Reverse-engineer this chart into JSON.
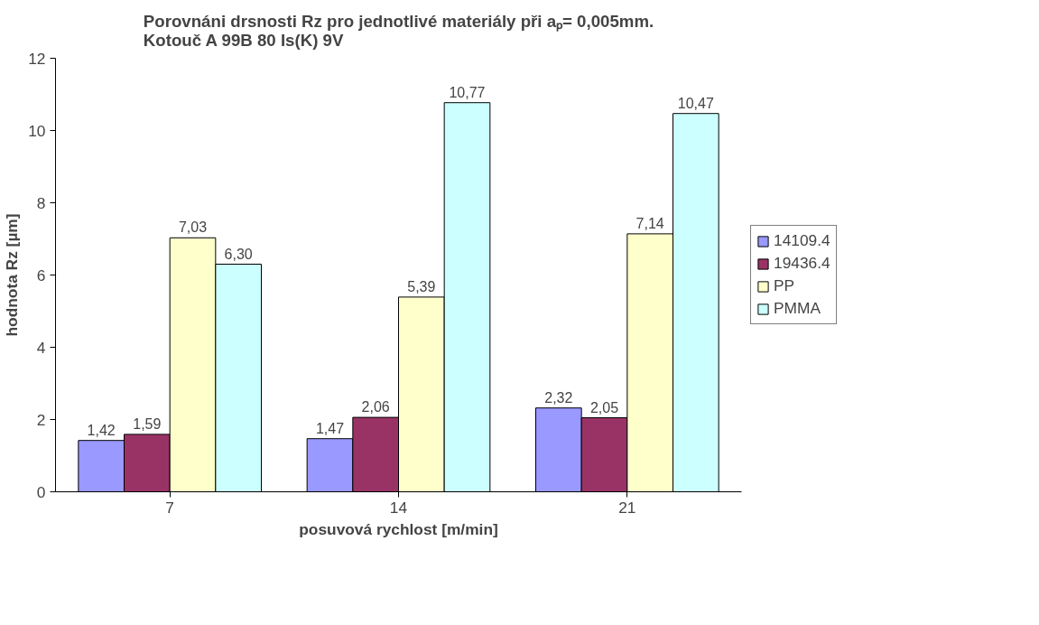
{
  "chart_data": {
    "type": "bar",
    "title": "Porovnáni drsnosti Rz pro jednotlivé materiály při aₚ= 0,005mm.\nKotouč A 99B 80 Is(K) 9V",
    "xlabel": "posuvová rychlost [m/min]",
    "ylabel": "hodnota Rz [µm]",
    "categories": [
      "7",
      "14",
      "21"
    ],
    "series": [
      {
        "name": "14109.4",
        "color": "#9999ff",
        "values": [
          1.42,
          1.47,
          2.32
        ],
        "value_labels": [
          "1,42",
          "1,47",
          "2,32"
        ]
      },
      {
        "name": "19436.4",
        "color": "#993366",
        "values": [
          1.59,
          2.06,
          2.05
        ],
        "value_labels": [
          "1,59",
          "2,06",
          "2,05"
        ]
      },
      {
        "name": "PP",
        "color": "#ffffcc",
        "values": [
          7.03,
          5.39,
          7.14
        ],
        "value_labels": [
          "7,03",
          "5,39",
          "7,14"
        ]
      },
      {
        "name": "PMMA",
        "color": "#ccffff",
        "values": [
          6.3,
          10.77,
          10.47
        ],
        "value_labels": [
          "6,30",
          "10,77",
          "10,47"
        ]
      }
    ],
    "ylim": [
      0,
      12
    ],
    "yticks": [
      0,
      2,
      4,
      6,
      8,
      10,
      12
    ],
    "grid": false,
    "legend": "right"
  }
}
